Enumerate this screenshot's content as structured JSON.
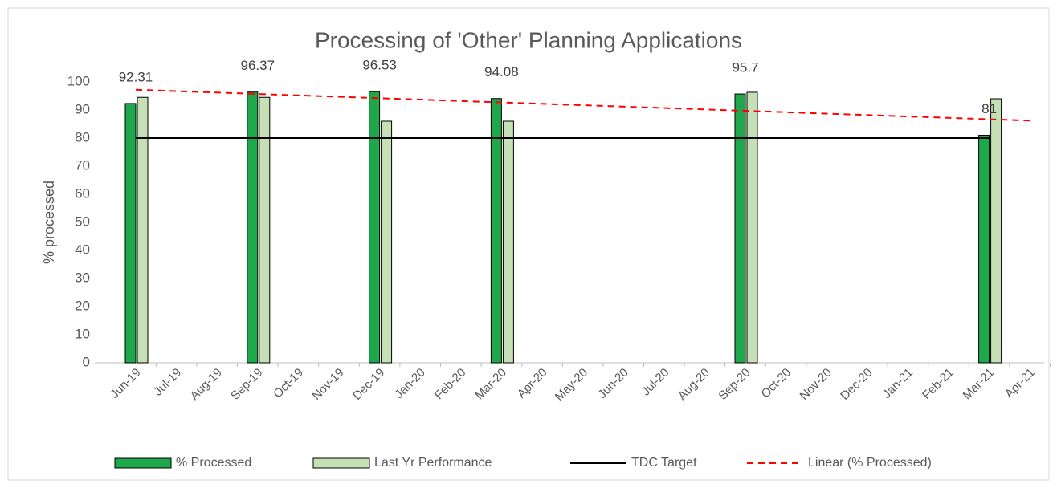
{
  "chart_data": {
    "type": "bar",
    "title": "Processing of 'Other' Planning Applications",
    "y_label": "% processed",
    "categories": [
      "Jun-19",
      "Jul-19",
      "Aug-19",
      "Sep-19",
      "Oct-19",
      "Nov-19",
      "Dec-19",
      "Jan-20",
      "Feb-20",
      "Mar-20",
      "Apr-20",
      "May-20",
      "Jun-20",
      "Jul-20",
      "Aug-20",
      "Sep-20",
      "Oct-20",
      "Nov-20",
      "Dec-20",
      "Jan-21",
      "Feb-21",
      "Mar-21",
      "Apr-21"
    ],
    "series": [
      {
        "name": "% Processed",
        "type": "bar",
        "color": "#1ea84b",
        "data_labels": true,
        "values": [
          92.31,
          null,
          null,
          96.37,
          null,
          null,
          96.53,
          null,
          null,
          94.08,
          null,
          null,
          null,
          null,
          null,
          95.7,
          null,
          null,
          null,
          null,
          null,
          81,
          null
        ]
      },
      {
        "name": "Last Yr Performance",
        "type": "bar",
        "color": "#c5e0b4",
        "values": [
          94.5,
          null,
          null,
          94.5,
          null,
          null,
          86,
          null,
          null,
          86,
          null,
          null,
          null,
          null,
          null,
          96.3,
          null,
          null,
          null,
          null,
          null,
          94,
          null
        ]
      },
      {
        "name": "TDC Target",
        "type": "line",
        "color": "#000000",
        "dashed": false,
        "values": [
          80,
          80,
          80,
          80,
          80,
          80,
          80,
          80,
          80,
          80,
          80,
          80,
          80,
          80,
          80,
          80,
          80,
          80,
          80,
          80,
          80,
          80,
          null
        ]
      },
      {
        "name": "Linear (% Processed)",
        "type": "line",
        "color": "#ff0000",
        "dashed": true,
        "values": [
          97.2,
          96.7,
          96.2,
          95.7,
          95.2,
          94.7,
          94.2,
          93.7,
          93.2,
          92.7,
          92.2,
          91.7,
          91.2,
          90.7,
          90.2,
          89.7,
          89.2,
          88.7,
          88.2,
          87.7,
          87.2,
          86.7,
          86.2
        ]
      }
    ],
    "ylim": [
      0,
      100
    ],
    "yticks": [
      0,
      10,
      20,
      30,
      40,
      50,
      60,
      70,
      80,
      90,
      100
    ],
    "grid": false,
    "legend": "bottom"
  }
}
